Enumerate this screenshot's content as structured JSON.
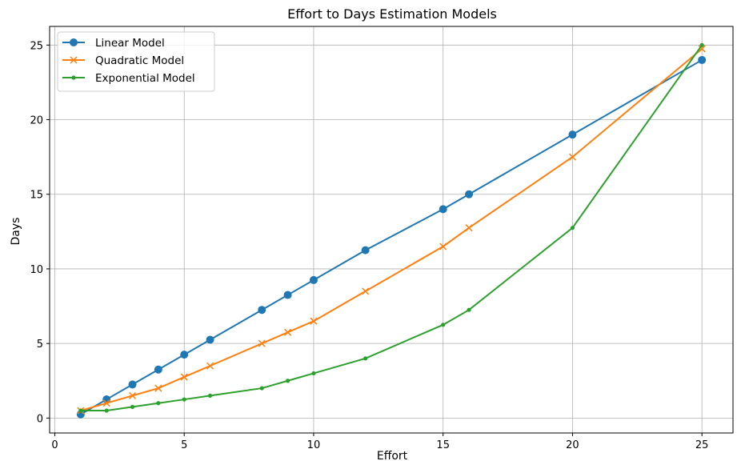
{
  "chart_data": {
    "type": "line",
    "title": "Effort to Days Estimation Models",
    "xlabel": "Effort",
    "ylabel": "Days",
    "xlim": [
      -0.2,
      26.2
    ],
    "ylim": [
      -1.0,
      26.25
    ],
    "xticks": [
      0,
      5,
      10,
      15,
      20,
      25
    ],
    "yticks": [
      0,
      5,
      10,
      15,
      20,
      25
    ],
    "grid": true,
    "legend": "top-left",
    "x": [
      1,
      2,
      3,
      4,
      5,
      6,
      8,
      9,
      10,
      12,
      15,
      16,
      20,
      25
    ],
    "series": [
      {
        "name": "Linear Model",
        "color": "#1f77b4",
        "marker": "circle",
        "values": [
          0.25,
          1.25,
          2.25,
          3.25,
          4.25,
          5.25,
          7.25,
          8.25,
          9.25,
          11.25,
          14,
          15,
          19,
          24
        ]
      },
      {
        "name": "Quadratic Model",
        "color": "#ff7f0e",
        "marker": "x",
        "values": [
          0.5,
          1.0,
          1.5,
          2.0,
          2.75,
          3.5,
          5.0,
          5.75,
          6.5,
          8.5,
          11.5,
          12.75,
          17.5,
          24.75
        ]
      },
      {
        "name": "Exponential Model",
        "color": "#2ca02c",
        "marker": "point",
        "values": [
          0.5,
          0.5,
          0.75,
          1.0,
          1.25,
          1.5,
          2.0,
          2.5,
          3.0,
          4.0,
          6.25,
          7.25,
          12.75,
          25
        ]
      }
    ]
  }
}
